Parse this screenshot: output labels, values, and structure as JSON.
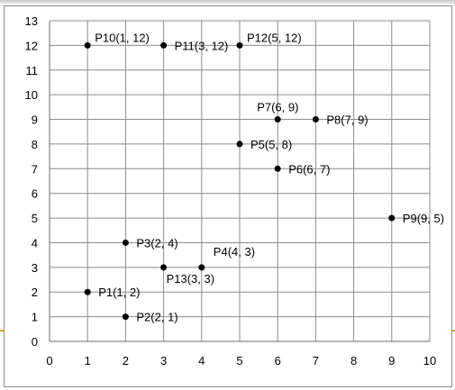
{
  "chart_data": {
    "type": "scatter",
    "title": "",
    "xlabel": "",
    "ylabel": "",
    "xlim": [
      0,
      10
    ],
    "ylim": [
      0,
      13
    ],
    "x_ticks": [
      0,
      1,
      2,
      3,
      4,
      5,
      6,
      7,
      8,
      9,
      10
    ],
    "y_ticks": [
      0,
      1,
      2,
      3,
      4,
      5,
      6,
      7,
      8,
      9,
      10,
      11,
      12,
      13
    ],
    "grid": true,
    "legend": "none",
    "marker_color": "#000000",
    "grid_color": "#8c8c8c",
    "points": [
      {
        "label": "P1(1, 2)",
        "x": 1,
        "y": 2
      },
      {
        "label": "P2(2, 1)",
        "x": 2,
        "y": 1
      },
      {
        "label": "P3(2, 4)",
        "x": 2,
        "y": 4
      },
      {
        "label": "P4(4, 3)",
        "x": 4,
        "y": 3
      },
      {
        "label": "P5(5, 8)",
        "x": 5,
        "y": 8
      },
      {
        "label": "P6(6, 7)",
        "x": 6,
        "y": 7
      },
      {
        "label": "P7(6, 9)",
        "x": 6,
        "y": 9
      },
      {
        "label": "P8(7, 9)",
        "x": 7,
        "y": 9
      },
      {
        "label": "P9(9, 5)",
        "x": 9,
        "y": 5
      },
      {
        "label": "P10(1, 12)",
        "x": 1,
        "y": 12
      },
      {
        "label": "P11(3, 12)",
        "x": 3,
        "y": 12
      },
      {
        "label": "P12(5, 12)",
        "x": 5,
        "y": 12
      },
      {
        "label": "P13(3, 3)",
        "x": 3,
        "y": 3
      }
    ]
  }
}
